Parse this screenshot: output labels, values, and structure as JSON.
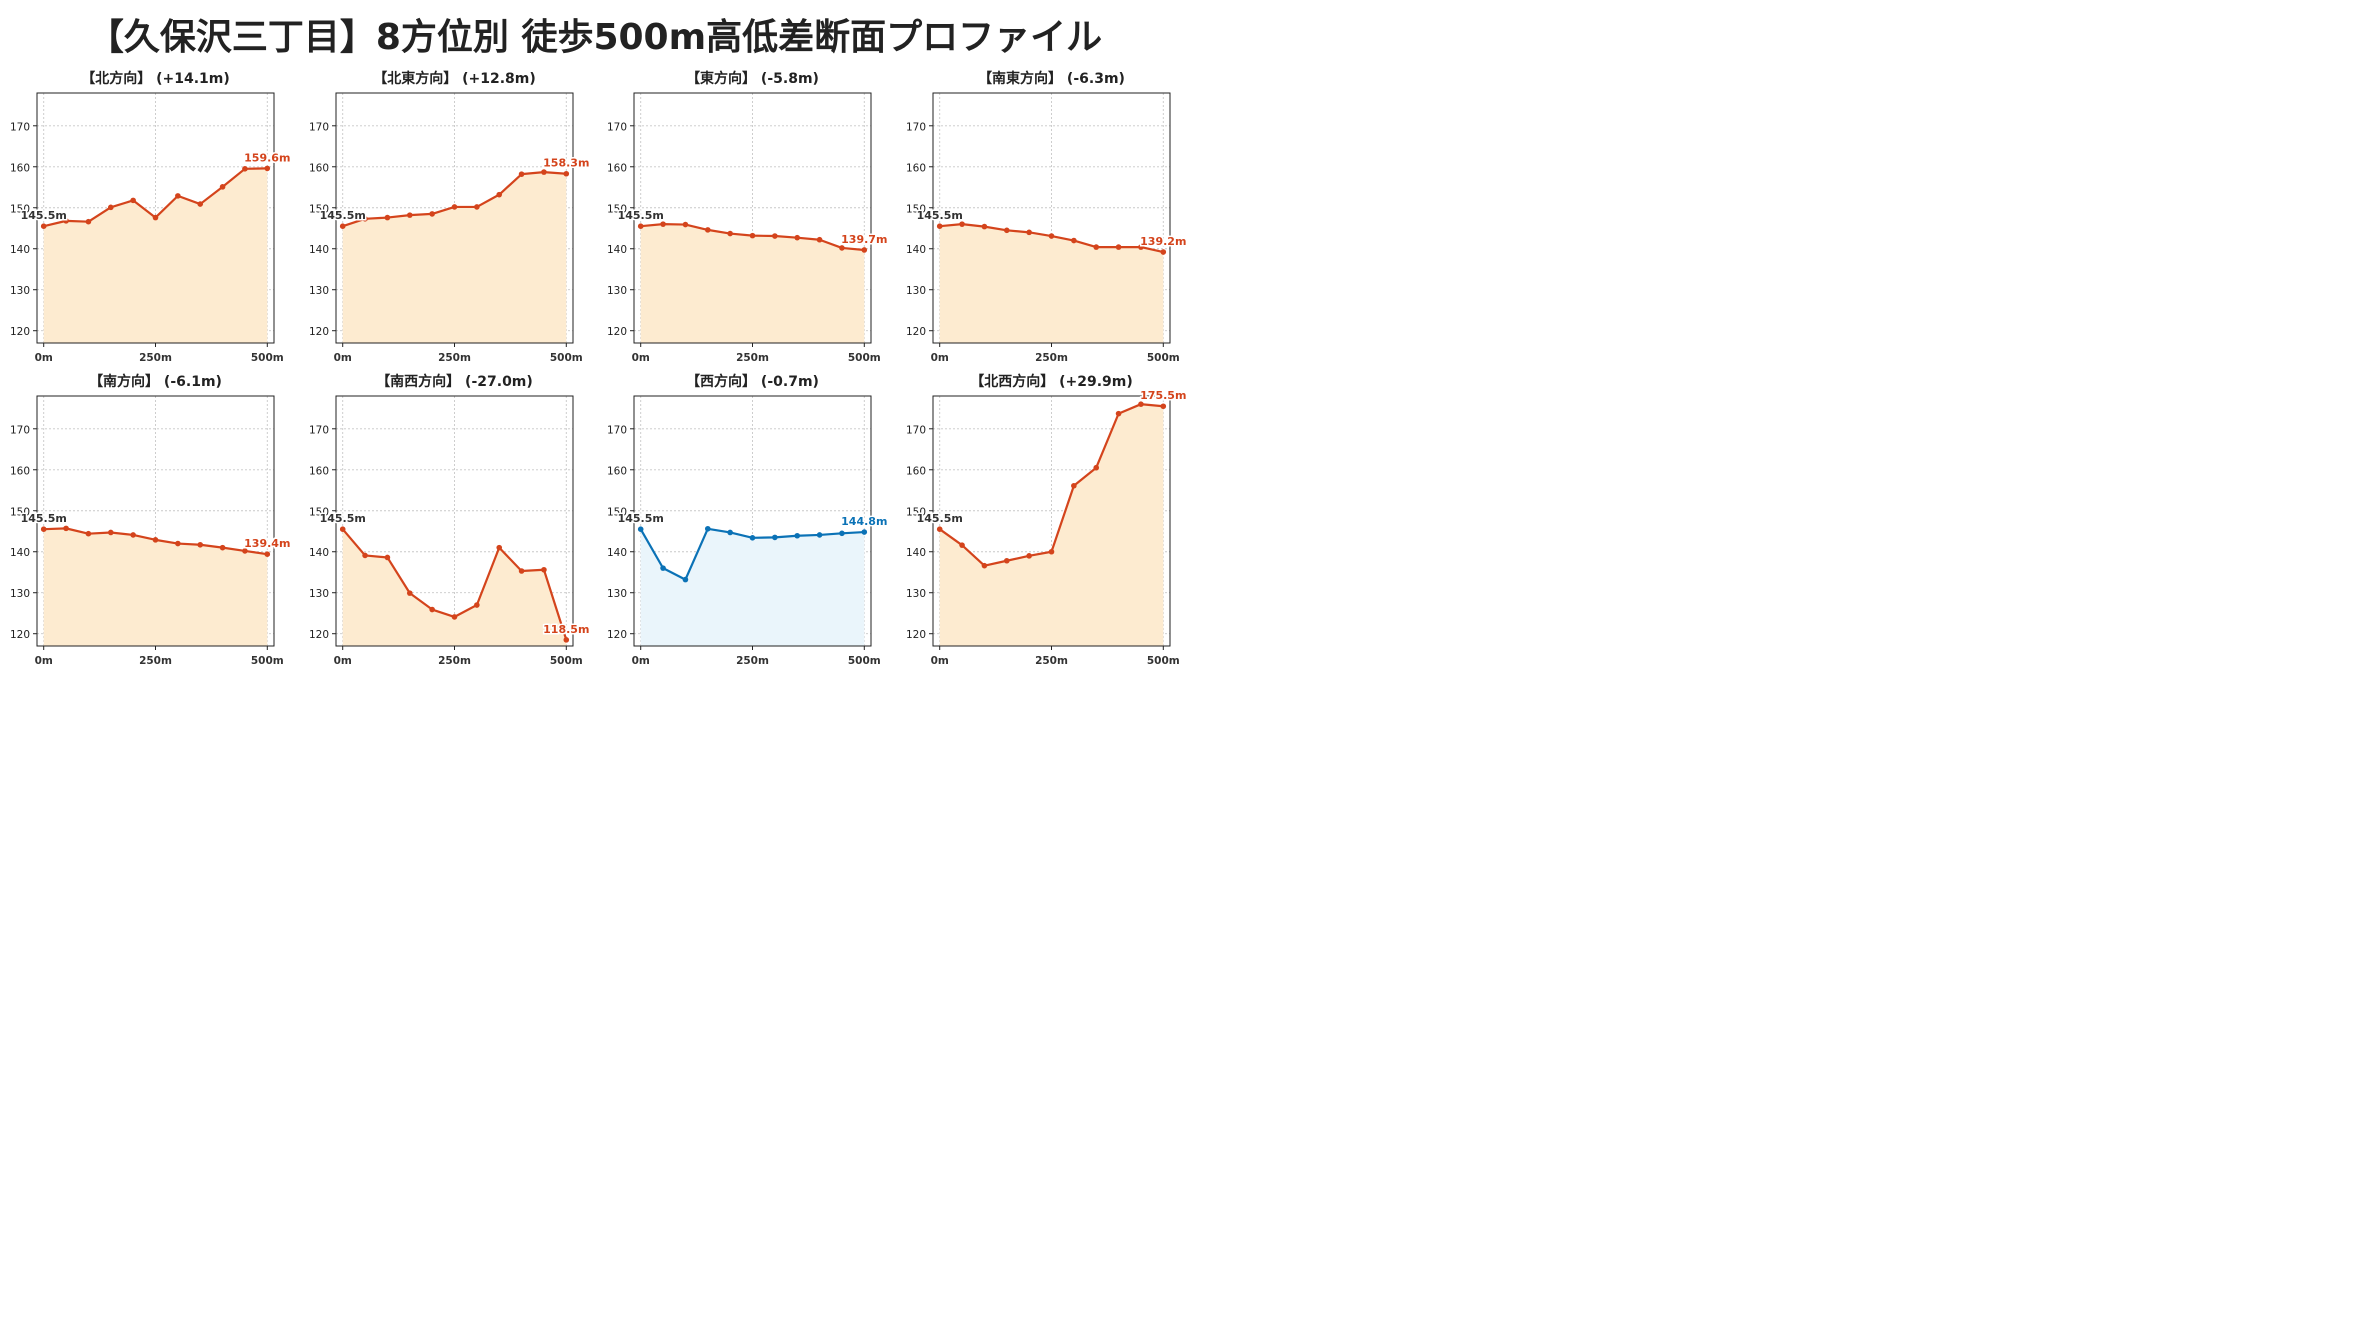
{
  "title": "【久保沢三丁目】8方位別 徒歩500m高低差断面プロファイル",
  "colors": {
    "up_line": "#d4441c",
    "up_fill": "#fdebd0",
    "down_line": "#0b72b6",
    "down_fill": "#eaf5fb",
    "grid": "#c8c8c8",
    "start_label": "#333333"
  },
  "chart_data": [
    {
      "type": "area",
      "title": "【北方向】 (+14.1m)",
      "x": [
        0,
        50,
        100,
        150,
        200,
        250,
        300,
        350,
        400,
        450,
        500
      ],
      "values": [
        145.5,
        146.8,
        146.6,
        150.1,
        151.8,
        147.6,
        152.9,
        150.9,
        155.1,
        159.5,
        159.6
      ],
      "xticks": [
        "0m",
        "250m",
        "500m"
      ],
      "yticks": [
        120,
        130,
        140,
        150,
        160,
        170
      ],
      "ylim": [
        117,
        178
      ],
      "xlim": [
        -15,
        515
      ],
      "grid": true,
      "start_label": "145.5m",
      "end_label": "159.6m",
      "color_scheme": "up"
    },
    {
      "type": "area",
      "title": "【北東方向】 (+12.8m)",
      "x": [
        0,
        50,
        100,
        150,
        200,
        250,
        300,
        350,
        400,
        450,
        500
      ],
      "values": [
        145.5,
        147.3,
        147.6,
        148.2,
        148.5,
        150.2,
        150.2,
        153.2,
        158.2,
        158.7,
        158.3
      ],
      "xticks": [
        "0m",
        "250m",
        "500m"
      ],
      "yticks": [
        120,
        130,
        140,
        150,
        160,
        170
      ],
      "ylim": [
        117,
        178
      ],
      "xlim": [
        -15,
        515
      ],
      "grid": true,
      "start_label": "145.5m",
      "end_label": "158.3m",
      "color_scheme": "up"
    },
    {
      "type": "area",
      "title": "【東方向】 (-5.8m)",
      "x": [
        0,
        50,
        100,
        150,
        200,
        250,
        300,
        350,
        400,
        450,
        500
      ],
      "values": [
        145.5,
        146.0,
        145.9,
        144.6,
        143.7,
        143.2,
        143.1,
        142.7,
        142.2,
        140.2,
        139.7
      ],
      "xticks": [
        "0m",
        "250m",
        "500m"
      ],
      "yticks": [
        120,
        130,
        140,
        150,
        160,
        170
      ],
      "ylim": [
        117,
        178
      ],
      "xlim": [
        -15,
        515
      ],
      "grid": true,
      "start_label": "145.5m",
      "end_label": "139.7m",
      "color_scheme": "up"
    },
    {
      "type": "area",
      "title": "【南東方向】 (-6.3m)",
      "x": [
        0,
        50,
        100,
        150,
        200,
        250,
        300,
        350,
        400,
        450,
        500
      ],
      "values": [
        145.5,
        146.0,
        145.4,
        144.5,
        144.0,
        143.1,
        142.0,
        140.4,
        140.4,
        140.4,
        139.2
      ],
      "xticks": [
        "0m",
        "250m",
        "500m"
      ],
      "yticks": [
        120,
        130,
        140,
        150,
        160,
        170
      ],
      "ylim": [
        117,
        178
      ],
      "xlim": [
        -15,
        515
      ],
      "grid": true,
      "start_label": "145.5m",
      "end_label": "139.2m",
      "color_scheme": "up"
    },
    {
      "type": "area",
      "title": "【南方向】 (-6.1m)",
      "x": [
        0,
        50,
        100,
        150,
        200,
        250,
        300,
        350,
        400,
        450,
        500
      ],
      "values": [
        145.5,
        145.7,
        144.4,
        144.7,
        144.1,
        142.9,
        142.0,
        141.7,
        141.0,
        140.2,
        139.4
      ],
      "xticks": [
        "0m",
        "250m",
        "500m"
      ],
      "yticks": [
        120,
        130,
        140,
        150,
        160,
        170
      ],
      "ylim": [
        117,
        178
      ],
      "xlim": [
        -15,
        515
      ],
      "grid": true,
      "start_label": "145.5m",
      "end_label": "139.4m",
      "color_scheme": "up"
    },
    {
      "type": "area",
      "title": "【南西方向】 (-27.0m)",
      "x": [
        0,
        50,
        100,
        150,
        200,
        250,
        300,
        350,
        400,
        450,
        500
      ],
      "values": [
        145.5,
        139.1,
        138.6,
        129.9,
        125.9,
        124.1,
        127.0,
        141.0,
        135.3,
        135.6,
        118.5
      ],
      "xticks": [
        "0m",
        "250m",
        "500m"
      ],
      "yticks": [
        120,
        130,
        140,
        150,
        160,
        170
      ],
      "ylim": [
        117,
        178
      ],
      "xlim": [
        -15,
        515
      ],
      "grid": true,
      "start_label": "145.5m",
      "end_label": "118.5m",
      "color_scheme": "up"
    },
    {
      "type": "area",
      "title": "【西方向】 (-0.7m)",
      "x": [
        0,
        50,
        100,
        150,
        200,
        250,
        300,
        350,
        400,
        450,
        500
      ],
      "values": [
        145.5,
        136.0,
        133.2,
        145.6,
        144.7,
        143.4,
        143.5,
        143.9,
        144.1,
        144.5,
        144.8
      ],
      "xticks": [
        "0m",
        "250m",
        "500m"
      ],
      "yticks": [
        120,
        130,
        140,
        150,
        160,
        170
      ],
      "ylim": [
        117,
        178
      ],
      "xlim": [
        -15,
        515
      ],
      "grid": true,
      "start_label": "145.5m",
      "end_label": "144.8m",
      "color_scheme": "down"
    },
    {
      "type": "area",
      "title": "【北西方向】 (+29.9m)",
      "x": [
        0,
        50,
        100,
        150,
        200,
        250,
        300,
        350,
        400,
        450,
        500
      ],
      "values": [
        145.5,
        141.6,
        136.6,
        137.8,
        139.0,
        140.0,
        156.1,
        160.5,
        173.7,
        176.0,
        175.5
      ],
      "xticks": [
        "0m",
        "250m",
        "500m"
      ],
      "yticks": [
        120,
        130,
        140,
        150,
        160,
        170
      ],
      "ylim": [
        117,
        178
      ],
      "xlim": [
        -15,
        515
      ],
      "grid": true,
      "start_label": "145.5m",
      "end_label": "175.5m",
      "color_scheme": "up"
    }
  ]
}
